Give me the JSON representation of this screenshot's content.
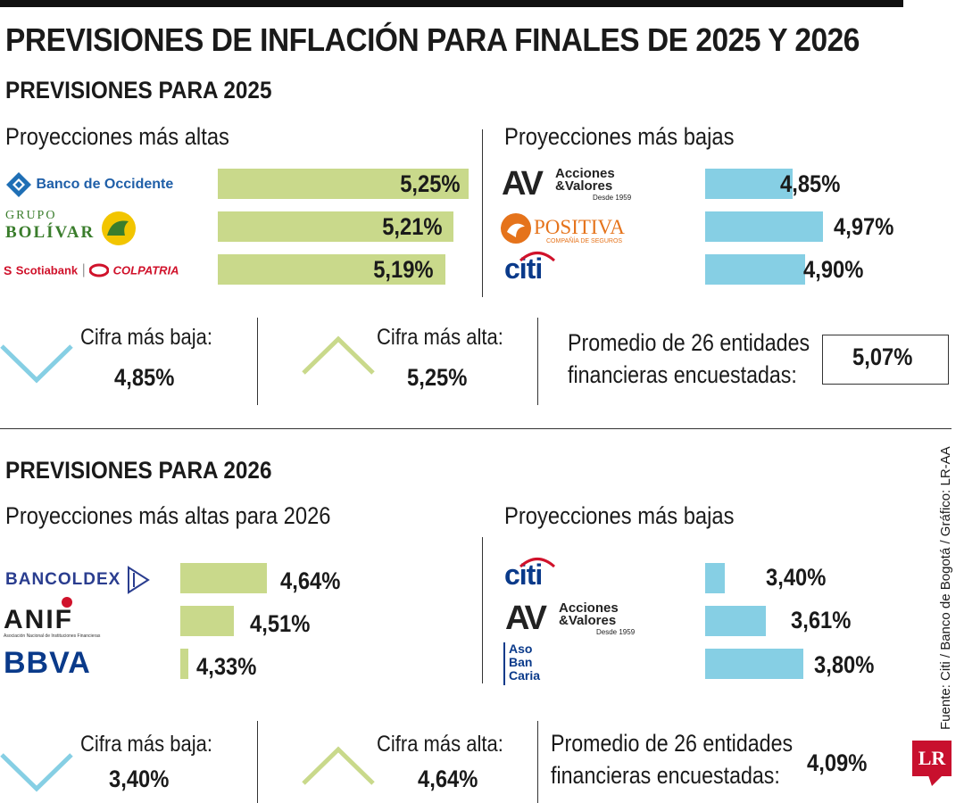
{
  "title": "PREVISIONES DE INFLACIÓN PARA FINALES DE 2025 Y 2026",
  "colors": {
    "green": "#c9d98b",
    "blue": "#86cfe4",
    "down_icon": "#86cfe4",
    "up_icon": "#c9d98b",
    "lr_red": "#c8102e"
  },
  "sections": [
    {
      "heading": "PREVISIONES PARA  2025",
      "high": {
        "title": "Proyecciones más altas",
        "items": [
          {
            "entity": "Banco de Occidente",
            "value": 5.25,
            "label": "5,25%"
          },
          {
            "entity": "Grupo Bolívar",
            "value": 5.21,
            "label": "5,21%"
          },
          {
            "entity": "Scotiabank Colpatria",
            "value": 5.19,
            "label": "5,19%"
          }
        ]
      },
      "low": {
        "title": "Proyecciones más bajas",
        "items": [
          {
            "entity": "Acciones & Valores",
            "value": 4.85,
            "label": "4,85%"
          },
          {
            "entity": "Positiva",
            "value": 4.97,
            "label": "4,97%"
          },
          {
            "entity": "Citi",
            "value": 4.9,
            "label": "4,90%"
          }
        ]
      },
      "summary": {
        "min_label": "Cifra más baja:",
        "min_value": "4,85%",
        "max_label": "Cifra más alta:",
        "max_value": "5,25%",
        "avg_line1": "Promedio de 26 entidades",
        "avg_line2": "financieras encuestadas:",
        "avg_value": "5,07%"
      }
    },
    {
      "heading": "PREVISIONES PARA  2026",
      "high": {
        "title": "Proyecciones más altas para 2026",
        "items": [
          {
            "entity": "Bancoldex",
            "value": 4.64,
            "label": "4,64%"
          },
          {
            "entity": "ANIF",
            "value": 4.51,
            "label": "4,51%"
          },
          {
            "entity": "BBVA",
            "value": 4.33,
            "label": "4,33%"
          }
        ]
      },
      "low": {
        "title": "Proyecciones más bajas",
        "items": [
          {
            "entity": "Citi",
            "value": 3.4,
            "label": "3,40%"
          },
          {
            "entity": "Acciones & Valores",
            "value": 3.61,
            "label": "3,61%"
          },
          {
            "entity": "Asobancaria",
            "value": 3.8,
            "label": "3,80%"
          }
        ]
      },
      "summary": {
        "min_label": "Cifra más baja:",
        "min_value": "3,40%",
        "max_label": "Cifra más alta:",
        "max_value": "4,64%",
        "avg_line1": "Promedio de 26 entidades",
        "avg_line2": "financieras encuestadas:",
        "avg_value": "4,09%"
      }
    }
  ],
  "logos": {
    "occidente": "Banco de Occidente",
    "bolivar_top": "GRUPO",
    "bolivar_bottom": "BOLÍVAR",
    "scotiabank": "Scotiabank",
    "colpatria": "COLPATRIA",
    "av_mark": "AV",
    "av_line1": "Acciones",
    "av_line2": "&Valores",
    "av_line3": "Desde 1959",
    "positiva": "POSITIVA",
    "positiva_sub": "COMPAÑÍA DE SEGUROS",
    "citi": "citi",
    "bancoldex": "BANCOLDEX",
    "anif": "ANIF",
    "anif_sub": "Asociación Nacional de Instituciones Financieras",
    "bbva": "BBVA",
    "aso1": "Aso",
    "aso2": "Ban",
    "aso3": "Caria"
  },
  "chart_data": [
    {
      "type": "bar",
      "title": "PREVISIONES PARA 2025 - Proyecciones más altas",
      "categories": [
        "Banco de Occidente",
        "Grupo Bolívar",
        "Scotiabank Colpatria"
      ],
      "values": [
        5.25,
        5.21,
        5.19
      ],
      "unit": "%",
      "orientation": "horizontal"
    },
    {
      "type": "bar",
      "title": "PREVISIONES PARA 2025 - Proyecciones más bajas",
      "categories": [
        "Acciones & Valores",
        "Positiva",
        "Citi"
      ],
      "values": [
        4.85,
        4.97,
        4.9
      ],
      "unit": "%",
      "orientation": "horizontal"
    },
    {
      "type": "bar",
      "title": "PREVISIONES PARA 2026 - Proyecciones más altas para 2026",
      "categories": [
        "Bancoldex",
        "ANIF",
        "BBVA"
      ],
      "values": [
        4.64,
        4.51,
        4.33
      ],
      "unit": "%",
      "orientation": "horizontal"
    },
    {
      "type": "bar",
      "title": "PREVISIONES PARA 2026 - Proyecciones más bajas",
      "categories": [
        "Citi",
        "Acciones & Valores",
        "Asobancaria"
      ],
      "values": [
        3.4,
        3.61,
        3.8
      ],
      "unit": "%",
      "orientation": "horizontal"
    }
  ],
  "source": "Fuente: Citi / Banco de Bogotá / Gráfico: LR-AA",
  "brand": "LR"
}
